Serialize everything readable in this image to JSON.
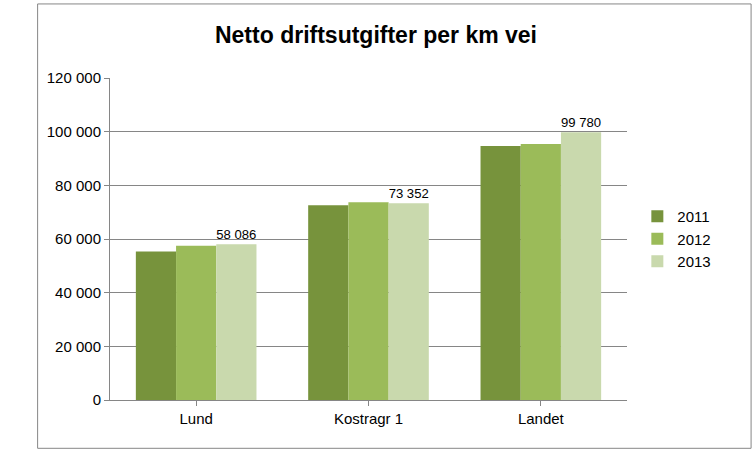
{
  "chart_data": {
    "type": "bar",
    "title": "Netto driftsutgifter per km vei",
    "categories": [
      "Lund",
      "Kostragr 1",
      "Landet"
    ],
    "series": [
      {
        "name": "2011",
        "color": "#77933c",
        "values": [
          55300,
          72600,
          94700
        ]
      },
      {
        "name": "2012",
        "color": "#9bbb59",
        "values": [
          57500,
          73700,
          95400
        ]
      },
      {
        "name": "2013",
        "color": "#c9d9ad",
        "values": [
          58086,
          73352,
          99780
        ],
        "value_labels": [
          "58 086",
          "73 352",
          "99 780"
        ]
      }
    ],
    "ylim": [
      0,
      120000
    ],
    "yticks": [
      0,
      {
        "value": 20000,
        "label": "20 000"
      },
      {
        "value": 40000,
        "label": "40 000"
      },
      {
        "value": 60000,
        "label": "60 000"
      },
      {
        "value": 80000,
        "label": "80 000"
      },
      {
        "value": 100000,
        "label": "100 000"
      },
      {
        "value": 120000,
        "label": "120 000"
      }
    ],
    "grid": true,
    "legend": "right"
  }
}
